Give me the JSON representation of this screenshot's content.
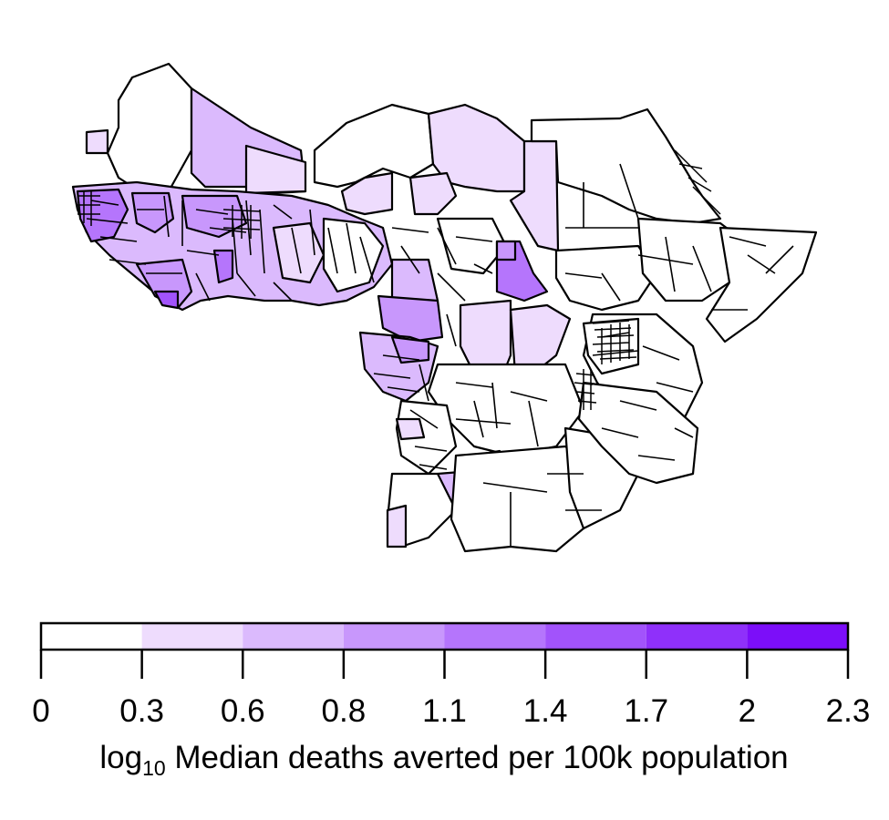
{
  "legend": {
    "title_prefix": "log",
    "title_subscript": "10",
    "title_rest": " Median deaths averted per 100k population",
    "breaks": [
      "0",
      "0.3",
      "0.6",
      "0.8",
      "1.1",
      "1.4",
      "1.7",
      "2",
      "2.3"
    ],
    "bin_colors": [
      "#ffffff",
      "#eedcfd",
      "#dbbafd",
      "#c897fc",
      "#b575fc",
      "#a253fb",
      "#8f30fa",
      "#7c0ef9"
    ]
  }
}
